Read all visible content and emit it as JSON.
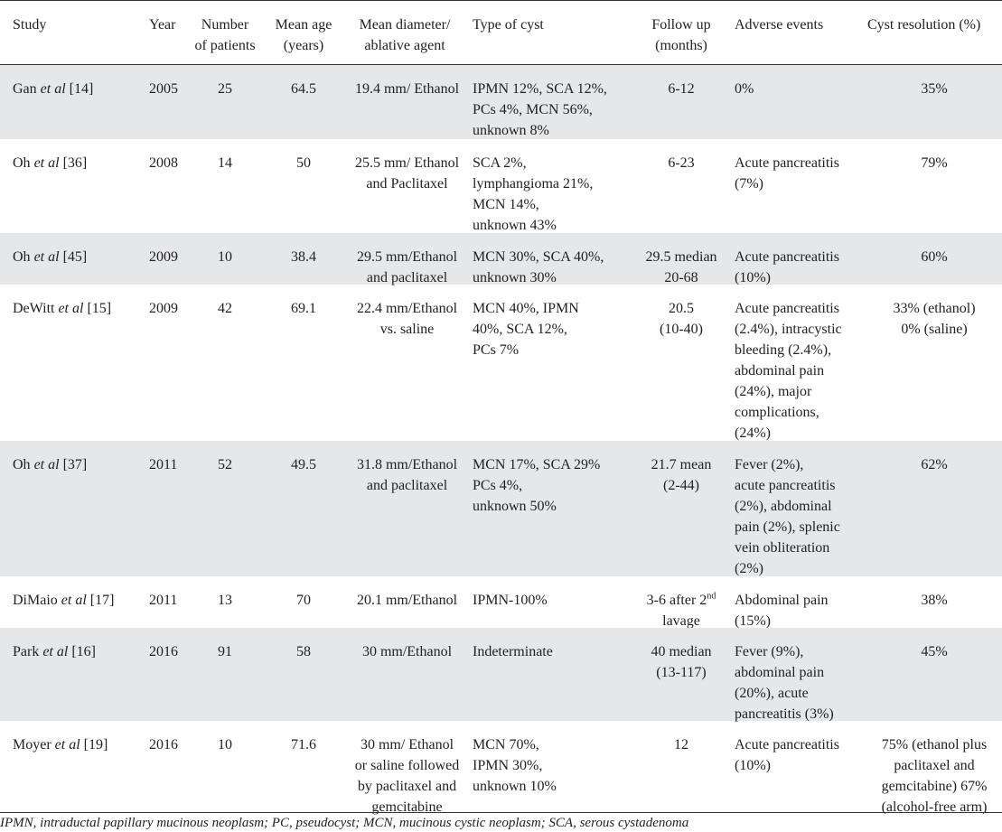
{
  "headers": [
    "Study",
    "Year",
    "Number\nof patients",
    "Mean age\n(years)",
    "Mean diameter/\nablative agent",
    "Type of cyst",
    "Follow up\n(months)",
    "Adverse events",
    "Cyst resolution (%)"
  ],
  "rows": [
    {
      "author": "Gan",
      "etal": "et al",
      "ref": "[14]",
      "year": "2005",
      "n": "25",
      "age": "64.5",
      "diameter": "19.4 mm/ Ethanol",
      "cyst": "IPMN 12%, SCA 12%,\nPCs 4%, MCN 56%,\nunknown 8%",
      "follow": "6-12",
      "adverse": "0%",
      "resolution": "35%"
    },
    {
      "author": "Oh",
      "etal": "et al",
      "ref": "[36]",
      "year": "2008",
      "n": "14",
      "age": "50",
      "diameter": "25.5 mm/ Ethanol\nand Paclitaxel",
      "cyst": "SCA 2%,\nlymphangioma 21%,\nMCN 14%,\nunknown 43%",
      "follow": "6-23",
      "adverse": "Acute pancreatitis\n(7%)",
      "resolution": "79%"
    },
    {
      "author": "Oh",
      "etal": "et al",
      "ref": "[45]",
      "year": "2009",
      "n": "10",
      "age": "38.4",
      "diameter": "29.5 mm/Ethanol\nand paclitaxel",
      "cyst": "MCN 30%, SCA 40%,\nunknown 30%",
      "follow": "29.5 median\n20-68",
      "adverse": "Acute pancreatitis\n(10%)",
      "resolution": "60%"
    },
    {
      "author": "DeWitt",
      "etal": "et al",
      "ref": "[15]",
      "year": "2009",
      "n": "42",
      "age": "69.1",
      "diameter": "22.4 mm/Ethanol\nvs. saline",
      "cyst": "MCN 40%, IPMN\n40%, SCA 12%,\nPCs 7%",
      "follow": "20.5\n(10-40)",
      "adverse": "Acute pancreatitis\n(2.4%), intracystic\nbleeding (2.4%),\nabdominal pain\n(24%), major\ncomplications,\n(24%)",
      "resolution": "33% (ethanol)\n0% (saline)"
    },
    {
      "author": "Oh",
      "etal": "et al",
      "ref": "[37]",
      "year": "2011",
      "n": "52",
      "age": "49.5",
      "diameter": "31.8 mm/Ethanol\nand paclitaxel",
      "cyst": "MCN 17%, SCA 29%\nPCs 4%,\nunknown 50%",
      "follow": "21.7 mean\n(2-44)",
      "adverse": "Fever (2%),\nacute pancreatitis\n(2%), abdominal\npain (2%), splenic\nvein obliteration\n(2%)",
      "resolution": "62%"
    },
    {
      "author": "DiMaio",
      "etal": "et al",
      "ref": "[17]",
      "year": "2011",
      "n": "13",
      "age": "70",
      "diameter": "20.1 mm/Ethanol",
      "cyst": "IPMN-100%",
      "follow_a": "3-6 after 2",
      "follow_sup": "nd",
      "follow_b": "lavage",
      "adverse": "Abdominal pain\n(15%)",
      "resolution": "38%"
    },
    {
      "author": "Park",
      "etal": "et al",
      "ref": "[16]",
      "year": "2016",
      "n": "91",
      "age": "58",
      "diameter": "30 mm/Ethanol",
      "cyst": "Indeterminate",
      "follow": "40 median\n(13-117)",
      "adverse": "Fever (9%),\nabdominal pain\n(20%), acute\npancreatitis (3%)",
      "resolution": "45%"
    },
    {
      "author": "Moyer",
      "etal": "et al",
      "ref": "[19]",
      "year": "2016",
      "n": "10",
      "age": "71.6",
      "diameter": "30 mm/ Ethanol\nor saline followed\nby paclitaxel and\ngemcitabine",
      "cyst": "MCN 70%,\nIPMN 30%,\nunknown 10%",
      "follow": "12",
      "adverse": "Acute pancreatitis\n(10%)",
      "resolution": "75% (ethanol plus\npaclitaxel and\ngemcitabine) 67%\n(alcohol-free arm)"
    }
  ],
  "footnote": "IPMN, intraductal papillary mucinous neoplasm; PC, pseudocyst; MCN, mucinous cystic neoplasm; SCA, serous cystadenoma",
  "colors": {
    "shade": "#e6e7e9",
    "rule": "#333333",
    "text": "#222222"
  }
}
